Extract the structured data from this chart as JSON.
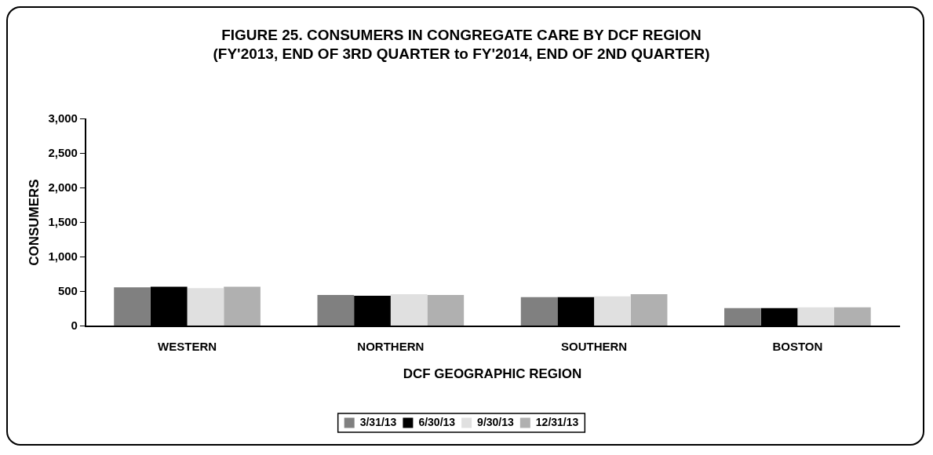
{
  "chart_data": {
    "type": "bar",
    "title": "FIGURE 25. CONSUMERS IN CONGREGATE CARE BY DCF REGION",
    "subtitle": "(FY'2013, END OF 3RD QUARTER to FY'2014, END OF 2ND QUARTER)",
    "xlabel": "DCF GEOGRAPHIC REGION",
    "ylabel": "CONSUMERS",
    "categories": [
      "WESTERN",
      "NORTHERN",
      "SOUTHERN",
      "BOSTON"
    ],
    "series": [
      {
        "name": "3/31/13",
        "color": "#808080",
        "values": [
          560,
          450,
          420,
          260
        ]
      },
      {
        "name": "6/30/13",
        "color": "#000000",
        "values": [
          570,
          440,
          420,
          260
        ]
      },
      {
        "name": "9/30/13",
        "color": "#e0e0e0",
        "values": [
          550,
          460,
          430,
          270
        ]
      },
      {
        "name": "12/31/13",
        "color": "#b0b0b0",
        "values": [
          570,
          450,
          460,
          270
        ]
      }
    ],
    "ylim": [
      0,
      3000
    ],
    "yticks": [
      0,
      500,
      {
        "value": 1000,
        "label": "1,000"
      },
      {
        "value": 1500,
        "label": "1,500"
      },
      {
        "value": 2000,
        "label": "2,000"
      },
      {
        "value": 2500,
        "label": "2,500"
      },
      {
        "value": 3000,
        "label": "3,000"
      }
    ],
    "grid": false,
    "legend": "bottom"
  }
}
